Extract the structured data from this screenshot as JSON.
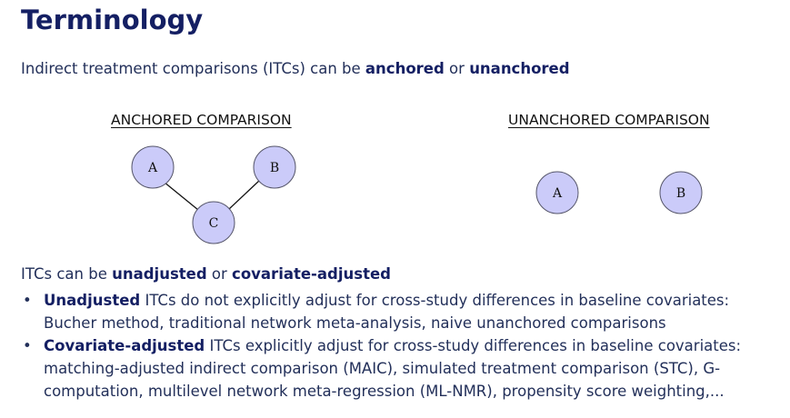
{
  "title": "Terminology",
  "intro": {
    "prefix": "Indirect treatment comparisons (ITCs) can be ",
    "term1": "anchored",
    "middle": " or ",
    "term2": "unanchored"
  },
  "diagrams": {
    "anchored": {
      "heading": "ANCHORED COMPARISON",
      "nodes": [
        "A",
        "B",
        "C"
      ]
    },
    "unanchored": {
      "heading": "UNANCHORED COMPARISON",
      "nodes": [
        "A",
        "B"
      ]
    },
    "colors": {
      "node_fill": "#cbcbf9",
      "node_stroke": "#555569"
    }
  },
  "adjustment": {
    "prefix": "ITCs can be ",
    "term1": "unadjusted",
    "middle": " or ",
    "term2": "covariate-adjusted"
  },
  "bullets": [
    {
      "bullet": "•",
      "term": "Unadjusted",
      "text": " ITCs do not explicitly adjust for cross-study differences in baseline covariates: Bucher method, traditional network meta-analysis, naive unanchored comparisons"
    },
    {
      "bullet": "•",
      "term": "Covariate-adjusted",
      "text": " ITCs explicitly adjust for cross-study differences in baseline covariates: matching-adjusted indirect comparison (MAIC), simulated treatment comparison (STC), G-computation, multilevel network meta-regression (ML-NMR), propensity score weighting,..."
    }
  ],
  "colors": {
    "title": "#141f63",
    "body_text": "#23305a"
  }
}
